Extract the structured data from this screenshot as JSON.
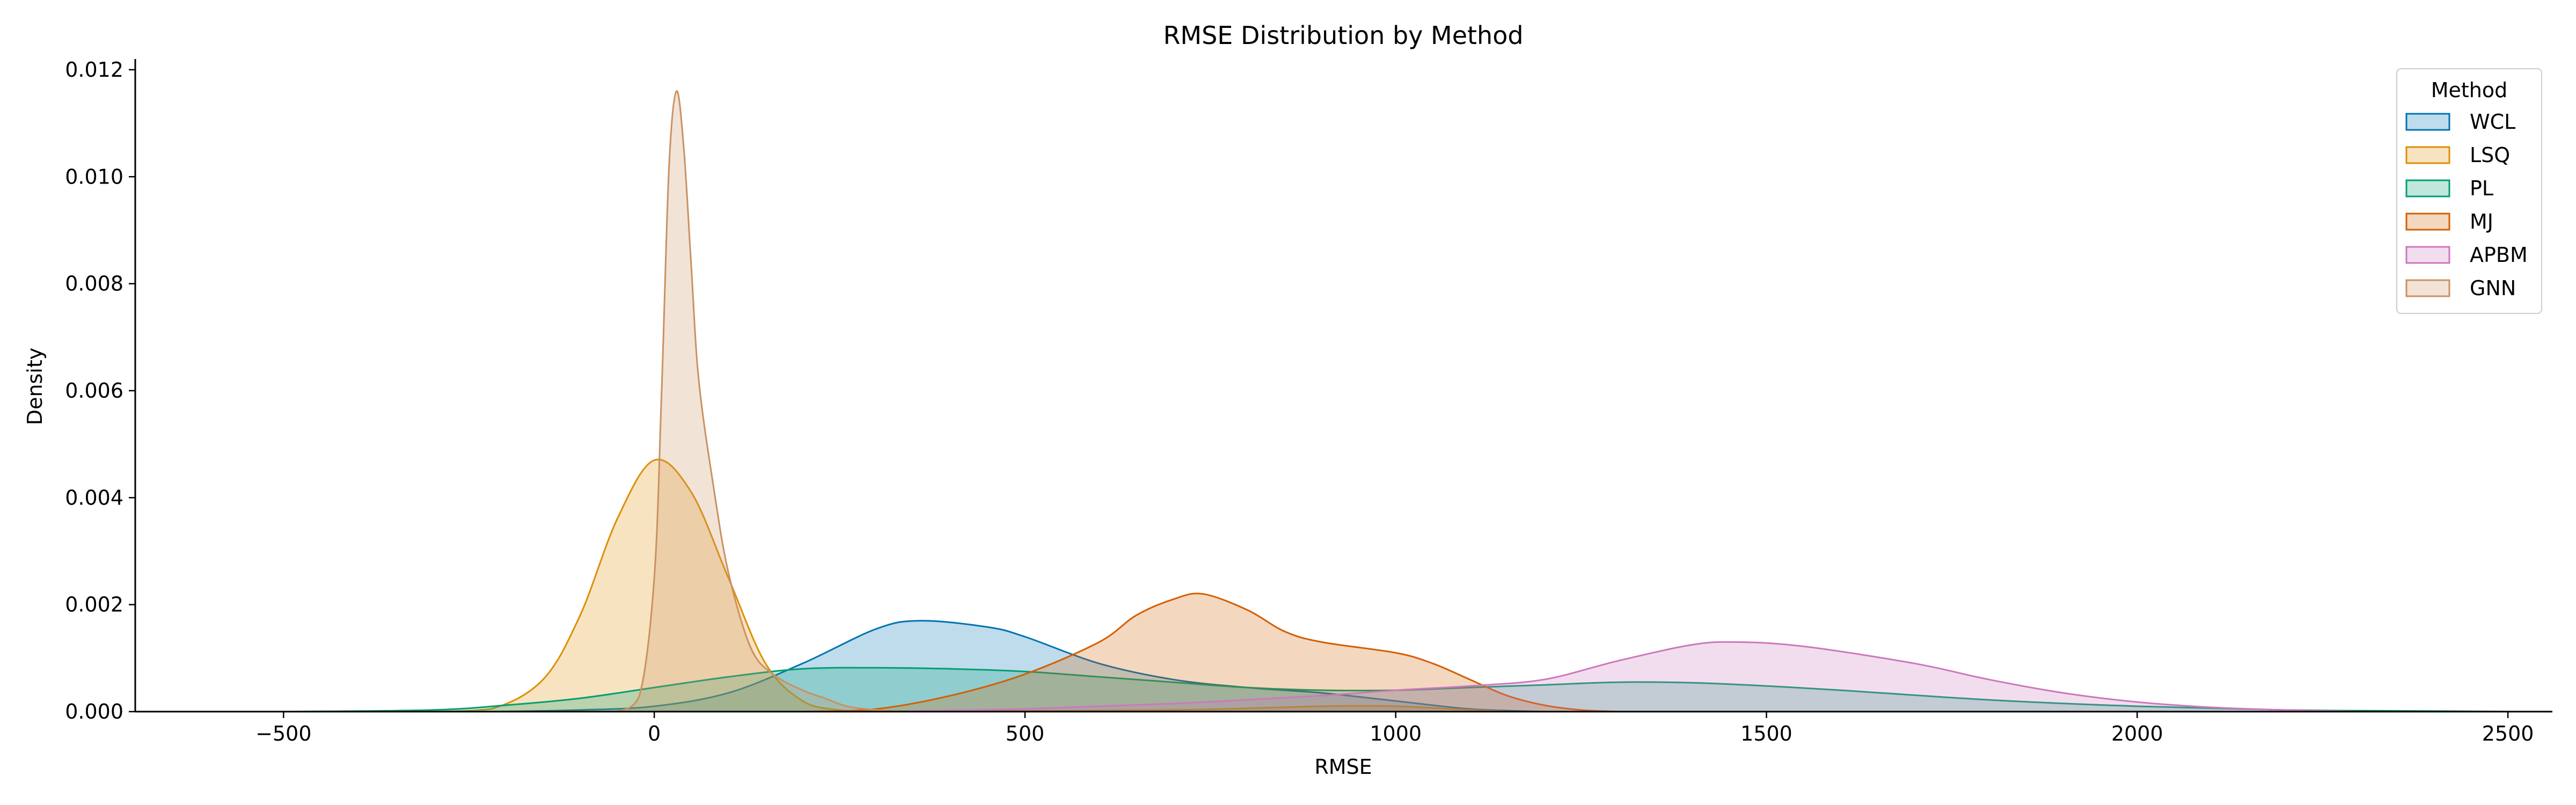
{
  "chart_data": {
    "type": "area",
    "title": "RMSE Distribution by Method",
    "xlabel": "RMSE",
    "ylabel": "Density",
    "xlim": [
      -700,
      2560
    ],
    "ylim": [
      0,
      0.0122
    ],
    "xticks": [
      -500,
      0,
      500,
      1000,
      1500,
      2000,
      2500
    ],
    "xtick_labels": [
      "−500",
      "0",
      "500",
      "1000",
      "1500",
      "2000",
      "2500"
    ],
    "yticks": [
      0,
      0.002,
      0.004,
      0.006,
      0.008,
      0.01,
      0.012
    ],
    "ytick_labels": [
      "0.000",
      "0.002",
      "0.004",
      "0.006",
      "0.008",
      "0.010",
      "0.012"
    ],
    "grid": false,
    "legend": {
      "title": "Method",
      "placement": "top-right"
    },
    "series": [
      {
        "name": "WCL",
        "color": "#0173b2",
        "x": [
          -220,
          -100,
          0,
          100,
          200,
          300,
          360,
          450,
          500,
          600,
          700,
          800,
          900,
          1000,
          1100,
          1200
        ],
        "y": [
          0,
          3e-05,
          0.0001,
          0.00035,
          0.0009,
          0.00155,
          0.0017,
          0.00158,
          0.0014,
          0.0009,
          0.0006,
          0.00045,
          0.00035,
          0.0002,
          5e-05,
          0
        ]
      },
      {
        "name": "LSQ",
        "color": "#de8f05",
        "x": [
          -300,
          -220,
          -150,
          -100,
          -50,
          0,
          50,
          100,
          150,
          200,
          250,
          300,
          400,
          700,
          900,
          1000,
          1100,
          1150
        ],
        "y": [
          0,
          5e-05,
          0.0006,
          0.0018,
          0.0036,
          0.0047,
          0.0041,
          0.0025,
          0.0009,
          0.0002,
          3e-05,
          1e-05,
          1e-05,
          3e-05,
          0.0001,
          0.0001,
          3e-05,
          0
        ]
      },
      {
        "name": "PL",
        "color": "#029e73",
        "x": [
          -500,
          -300,
          -200,
          -100,
          0,
          100,
          200,
          300,
          400,
          500,
          600,
          700,
          800,
          900,
          1000,
          1100,
          1200,
          1300,
          1400,
          1500,
          1600,
          1800,
          2000,
          2200,
          2400,
          2500
        ],
        "y": [
          0,
          3e-05,
          0.00012,
          0.00025,
          0.00045,
          0.00065,
          0.0008,
          0.00082,
          0.0008,
          0.00075,
          0.00065,
          0.00055,
          0.00045,
          0.0004,
          0.0004,
          0.00045,
          0.0005,
          0.00055,
          0.00054,
          0.00048,
          0.0004,
          0.00022,
          0.0001,
          3e-05,
          1e-05,
          0
        ]
      },
      {
        "name": "MJ",
        "color": "#d55e00",
        "x": [
          200,
          300,
          400,
          500,
          600,
          650,
          700,
          740,
          800,
          850,
          900,
          1000,
          1050,
          1100,
          1150,
          1200,
          1250,
          1300
        ],
        "y": [
          0,
          5e-05,
          0.0003,
          0.0007,
          0.0013,
          0.0018,
          0.0021,
          0.0022,
          0.0019,
          0.0015,
          0.0013,
          0.0011,
          0.0009,
          0.0006,
          0.0003,
          0.00012,
          3e-05,
          0
        ]
      },
      {
        "name": "APBM",
        "color": "#cc78bc",
        "x": [
          300,
          500,
          700,
          900,
          1000,
          1100,
          1200,
          1300,
          1400,
          1460,
          1550,
          1700,
          1800,
          1900,
          2000,
          2100,
          2200,
          2300
        ],
        "y": [
          0,
          5e-05,
          0.00015,
          0.0003,
          0.0004,
          0.00048,
          0.0006,
          0.00095,
          0.00125,
          0.0013,
          0.00122,
          0.0009,
          0.0006,
          0.00035,
          0.00018,
          8e-05,
          3e-05,
          0
        ]
      },
      {
        "name": "GNN",
        "color": "#ca9161",
        "x": [
          -50,
          -20,
          0,
          10,
          20,
          30,
          40,
          50,
          60,
          80,
          100,
          130,
          160,
          200,
          230,
          260,
          300,
          350
        ],
        "y": [
          0,
          0.0003,
          0.0025,
          0.006,
          0.0102,
          0.0116,
          0.0105,
          0.0083,
          0.0062,
          0.0042,
          0.0026,
          0.0012,
          0.0007,
          0.0004,
          0.00025,
          0.0001,
          3e-05,
          0
        ]
      }
    ]
  }
}
